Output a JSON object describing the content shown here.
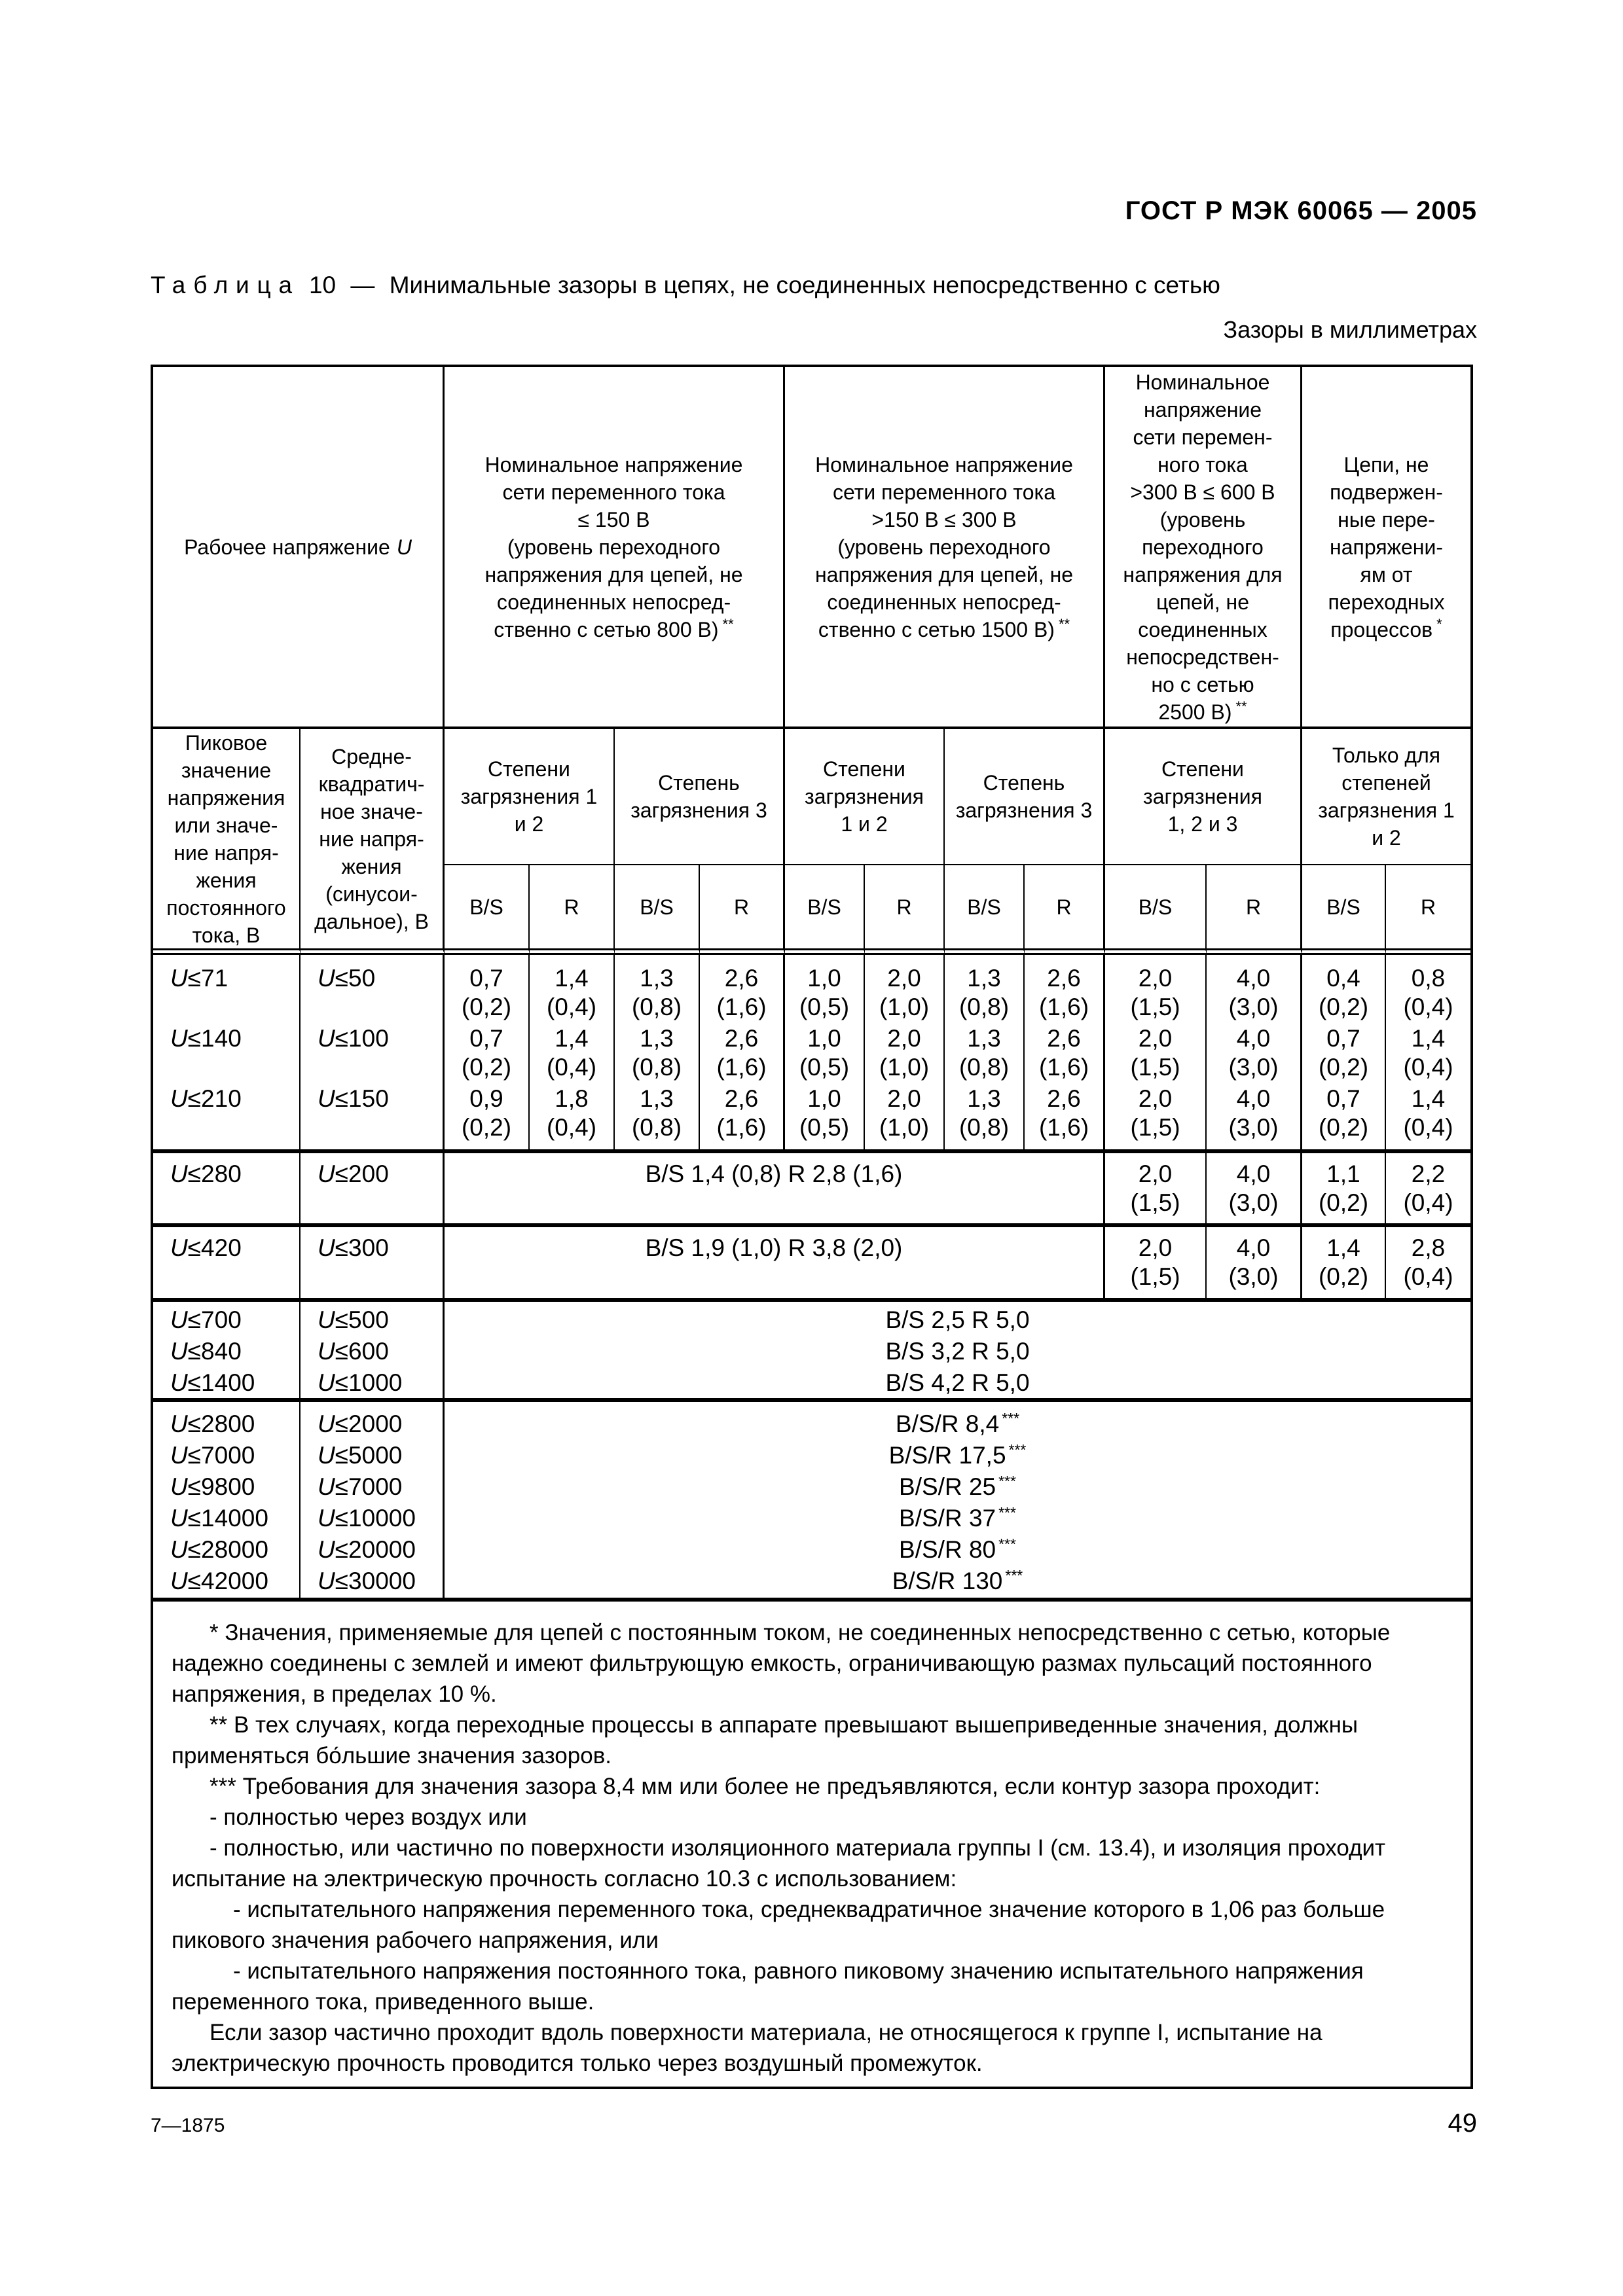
{
  "page": {
    "doc_code": "ГОСТ Р МЭК 60065 — 2005",
    "caption_label": "Таблица",
    "caption_num": "10",
    "caption_sep": "—",
    "caption_text": "Минимальные зазоры в цепях, не соединенных непосредственно с сетью",
    "units_note": "Зазоры в миллиметрах",
    "footer_left": "7—1875",
    "page_number": "49"
  },
  "table": {
    "h1": {
      "working": "Рабочее напряжение",
      "working_u": "U",
      "a": "Номинальное напряжение\nсети переменного тока\n≤ 150 В\n(уровень переходного\nнапряжения для цепей, не\nсоединенных непосред-\nственно с сетью 800 В)",
      "a_mark": "**",
      "b": "Номинальное напряжение\nсети переменного тока\n>150 В ≤ 300 В\n(уровень переходного\nнапряжения для цепей, не\nсоединенных непосред-\nственно с сетью 1500 В)",
      "b_mark": "**",
      "c": "Номинальное\nнапряжение\nсети перемен-\nного тока\n>300 В ≤ 600 В\n(уровень\nпереходного\nнапряжения для\nцепей, не\nсоединенных\nнепосредствен-\nно с сетью\n2500 В)",
      "c_mark": "**",
      "d": "Цепи, не\nподвержен-\nные пере-\nнапряжени-\nям от\nпереходных\nпроцессов",
      "d_mark": "*"
    },
    "h2": {
      "peak": "Пиковое\nзначение\nнапряжения\nили значе-\nние напря-\nжения\nпостоянного\nтока, В",
      "rms": "Средне-\nквадратич-\nное значе-\nние напря-\nжения\n(синусои-\nдальное), В",
      "d1": "Степени\nзагрязнения 1\nи 2",
      "d2": "Степень\nзагрязнения 3",
      "d3": "Степени\nзагрязнения\n1 и 2",
      "d4": "Степень\nзагрязнения 3",
      "d5": "Степени\nзагрязнения\n1, 2 и 3",
      "d6": "Только для\nстепеней\nзагрязнения 1\nи 2"
    },
    "h3": {
      "bs": "B/S",
      "r": "R"
    },
    "s1": {
      "peak": [
        "U≤71",
        "U≤140",
        "U≤210"
      ],
      "rms": [
        "U≤50",
        "U≤100",
        "U≤150"
      ],
      "cols": [
        [
          "0,7\n(0,2)",
          "0,7\n(0,2)",
          "0,9\n(0,2)"
        ],
        [
          "1,4\n(0,4)",
          "1,4\n(0,4)",
          "1,8\n(0,4)"
        ],
        [
          "1,3\n(0,8)",
          "1,3\n(0,8)",
          "1,3\n(0,8)"
        ],
        [
          "2,6\n(1,6)",
          "2,6\n(1,6)",
          "2,6\n(1,6)"
        ],
        [
          "1,0\n(0,5)",
          "1,0\n(0,5)",
          "1,0\n(0,5)"
        ],
        [
          "2,0\n(1,0)",
          "2,0\n(1,0)",
          "2,0\n(1,0)"
        ],
        [
          "1,3\n(0,8)",
          "1,3\n(0,8)",
          "1,3\n(0,8)"
        ],
        [
          "2,6\n(1,6)",
          "2,6\n(1,6)",
          "2,6\n(1,6)"
        ],
        [
          "2,0\n(1,5)",
          "2,0\n(1,5)",
          "2,0\n(1,5)"
        ],
        [
          "4,0\n(3,0)",
          "4,0\n(3,0)",
          "4,0\n(3,0)"
        ],
        [
          "0,4\n(0,2)",
          "0,7\n(0,2)",
          "0,7\n(0,2)"
        ],
        [
          "0,8\n(0,4)",
          "1,4\n(0,4)",
          "1,4\n(0,4)"
        ]
      ]
    },
    "s2": {
      "peak": "U≤280",
      "rms": "U≤200",
      "merged": "B/S 1,4 (0,8)  R 2,8 (1,6)",
      "tail": [
        "2,0\n(1,5)",
        "4,0\n(3,0)",
        "1,1\n(0,2)",
        "2,2\n(0,4)"
      ]
    },
    "s3": {
      "peak": "U≤420",
      "rms": "U≤300",
      "merged": "B/S 1,9 (1,0)  R 3,8 (2,0)",
      "tail": [
        "2,0\n(1,5)",
        "4,0\n(3,0)",
        "1,4\n(0,2)",
        "2,8\n(0,4)"
      ]
    },
    "s4": {
      "peak": [
        "U≤700",
        "U≤840",
        "U≤1400"
      ],
      "rms": [
        "U≤500",
        "U≤600",
        "U≤1000"
      ],
      "merged": [
        "B/S 2,5  R 5,0",
        "B/S 3,2  R 5,0",
        "B/S 4,2  R 5,0"
      ]
    },
    "s5": {
      "peak": [
        "U≤2800",
        "U≤7000",
        "U≤9800",
        "U≤14000",
        "U≤28000",
        "U≤42000"
      ],
      "rms": [
        "U≤2000",
        "U≤5000",
        "U≤7000",
        "U≤10000",
        "U≤20000",
        "U≤30000"
      ],
      "merged": [
        {
          "v": "B/S/R 8,4",
          "m": "***"
        },
        {
          "v": "B/S/R 17,5",
          "m": "***"
        },
        {
          "v": "B/S/R 25",
          "m": "***"
        },
        {
          "v": "B/S/R 37",
          "m": "***"
        },
        {
          "v": "B/S/R 80",
          "m": "***"
        },
        {
          "v": "B/S/R 130",
          "m": "***"
        }
      ]
    },
    "notes": [
      "* Значения, применяемые для цепей с постоянным током, не соединенных непосредственно с сетью, которые надежно соединены с землей и имеют фильтрующую емкость, ограничивающую размах пульсаций постоянного напряжения, в пределах 10 %.",
      "** В тех случаях, когда переходные процессы в аппарате превышают вышеприведенные значения, должны применяться бо́льшие значения зазоров.",
      "*** Требования для значения зазора 8,4 мм или более не предъявляются, если контур зазора проходит:",
      "- полностью через воздух или",
      "- полностью, или частично по поверхности изоляционного материала группы I (см. 13.4), и изоляция проходит испытание на электрическую прочность согласно 10.3 с использованием:",
      "- испытательного напряжения переменного тока, среднеквадратичное значение которого в 1,06 раз больше пикового значения рабочего напряжения, или",
      "- испытательного напряжения постоянного тока, равного пиковому значению испытательного напряжения переменного тока, приведенного выше.",
      "Если зазор частично проходит вдоль поверхности материала, не относящегося к группе I, испытание на электрическую прочность проводится только через воздушный промежуток."
    ]
  }
}
